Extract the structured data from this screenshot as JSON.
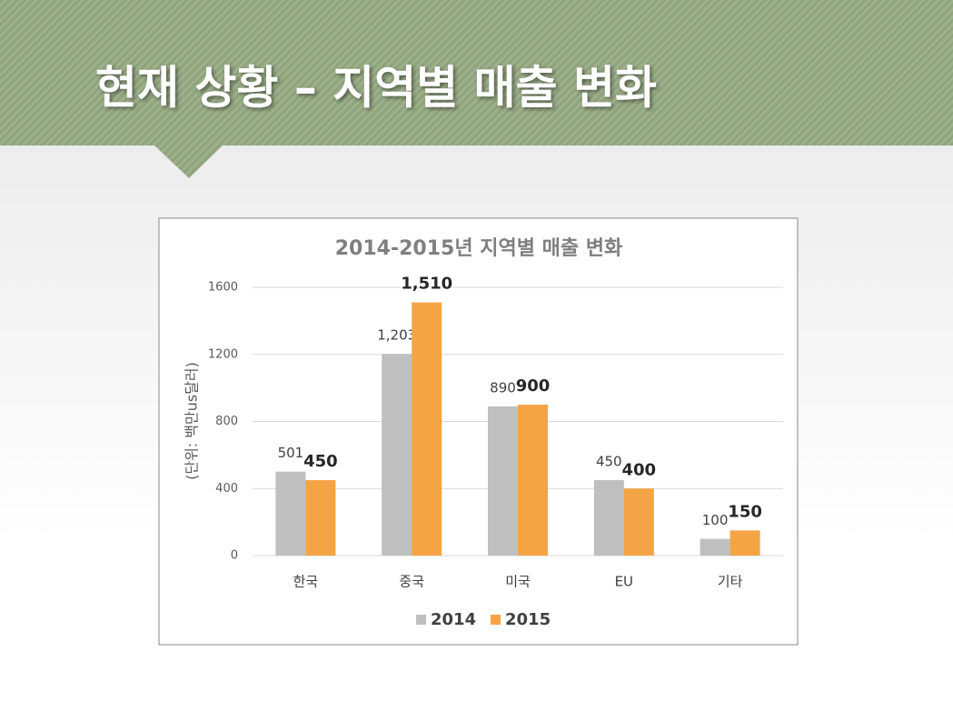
{
  "slide": {
    "title": "현재 상황 – 지역별 매출 변화"
  },
  "chart_data": {
    "type": "bar",
    "title": "2014-2015년 지역별 매출 변화",
    "y_label": "(단위: 백만us달러)",
    "categories": [
      "한국",
      "중국",
      "미국",
      "EU",
      "기타"
    ],
    "series": [
      {
        "name": "2014",
        "color": "#bfbfbf",
        "values": [
          501,
          1203,
          890,
          450,
          100
        ],
        "value_labels": [
          "501",
          "1,203",
          "890",
          "450",
          "100"
        ]
      },
      {
        "name": "2015",
        "color": "#f4a444",
        "values": [
          450,
          1510,
          900,
          400,
          150
        ],
        "value_labels": [
          "450",
          "1,510",
          "900",
          "400",
          "150"
        ]
      }
    ],
    "ylim": [
      0,
      1600
    ],
    "yticks": [
      0,
      400,
      800,
      1200,
      1600
    ],
    "grid": true,
    "legend": "bottom"
  }
}
